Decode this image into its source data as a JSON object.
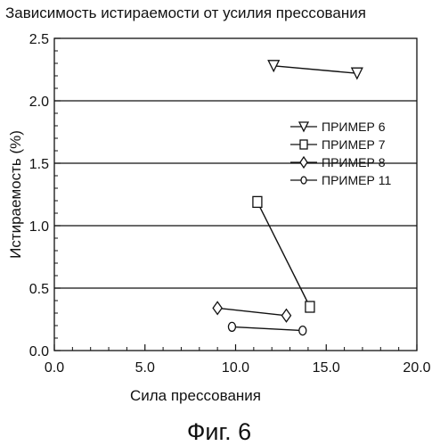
{
  "chart_data": {
    "type": "line",
    "title": "Зависимость истираемости от усилия прессования",
    "xlabel": "Сила прессования",
    "ylabel": "Истираемость (%)",
    "xlim": [
      0,
      20
    ],
    "ylim": [
      0,
      2.5
    ],
    "x_ticks": [
      "0.0",
      "5.0",
      "10.0",
      "15.0",
      "20.0"
    ],
    "y_ticks": [
      "0.0",
      "0.5",
      "1.0",
      "1.5",
      "2.0",
      "2.5"
    ],
    "grid": "horizontal",
    "legend_position": "right",
    "series": [
      {
        "name": "ПРИМЕР 6",
        "marker": "triangle-down",
        "points": [
          [
            12.1,
            2.28
          ],
          [
            16.7,
            2.22
          ]
        ]
      },
      {
        "name": "ПРИМЕР 7",
        "marker": "square",
        "points": [
          [
            11.2,
            1.19
          ],
          [
            14.1,
            0.35
          ]
        ]
      },
      {
        "name": "ПРИМЕР 8",
        "marker": "diamond",
        "points": [
          [
            9.0,
            0.34
          ],
          [
            12.8,
            0.28
          ]
        ]
      },
      {
        "name": "ПРИМЕР 11",
        "marker": "circle",
        "points": [
          [
            9.8,
            0.19
          ],
          [
            13.7,
            0.16
          ]
        ]
      }
    ],
    "line_color": "#111111"
  },
  "figure_caption": "Фиг. 6"
}
